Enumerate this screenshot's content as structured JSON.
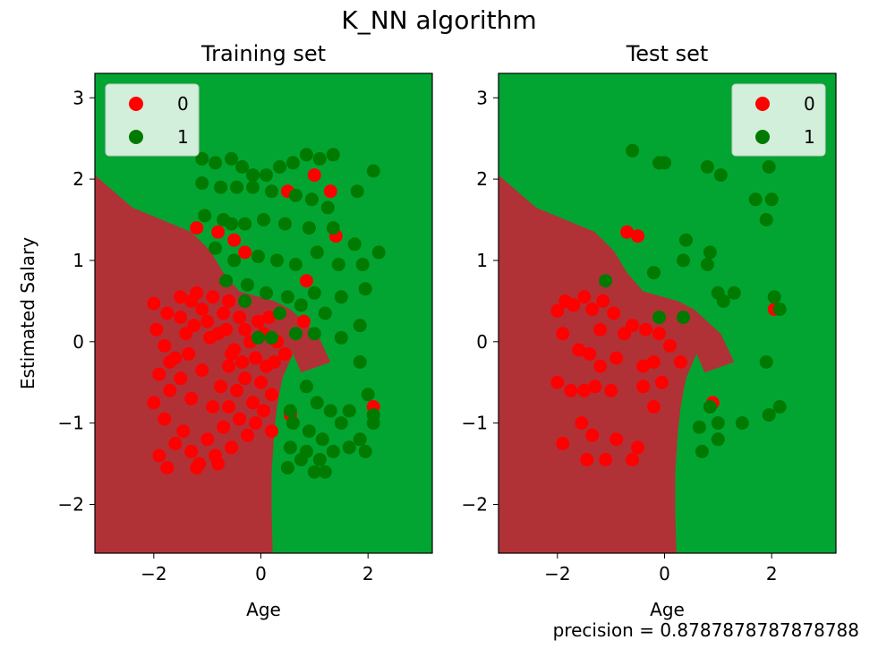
{
  "figure": {
    "title": "K_NN algorithm",
    "footnote": "precision = 0.8787878787878788"
  },
  "colors": {
    "region_0": "#b03237",
    "region_1": "#02a532",
    "point_0": "#ff0000",
    "point_1": "#007a00"
  },
  "chart_data": [
    {
      "type": "scatter",
      "title": "Training set",
      "xlabel": "Age",
      "ylabel": "Estimated Salary",
      "xlim": [
        -3.1,
        3.2
      ],
      "ylim": [
        -2.6,
        3.3
      ],
      "xticks": [
        -2,
        0,
        2
      ],
      "yticks": [
        -2,
        -1,
        0,
        1,
        2,
        3
      ],
      "xtick_labels": [
        "−2",
        "0",
        "2"
      ],
      "ytick_labels": [
        "−2",
        "−1",
        "0",
        "1",
        "2",
        "3"
      ],
      "legend": {
        "placement": "top-left",
        "entries": [
          "0",
          "1"
        ]
      },
      "decision_boundary_class0": [
        [
          -3.1,
          -2.6
        ],
        [
          -3.1,
          2.05
        ],
        [
          -2.4,
          1.65
        ],
        [
          -1.85,
          1.5
        ],
        [
          -1.3,
          1.35
        ],
        [
          -0.95,
          1.12
        ],
        [
          -0.7,
          0.85
        ],
        [
          -0.4,
          0.62
        ],
        [
          0.25,
          0.5
        ],
        [
          0.55,
          0.4
        ],
        [
          1.05,
          0.1
        ],
        [
          1.3,
          -0.25
        ],
        [
          0.75,
          -0.38
        ],
        [
          0.6,
          -0.15
        ],
        [
          0.4,
          -0.45
        ],
        [
          0.3,
          -0.8
        ],
        [
          0.25,
          -1.1
        ],
        [
          0.2,
          -1.6
        ],
        [
          0.2,
          -2.1
        ],
        [
          0.22,
          -2.6
        ]
      ],
      "series": [
        {
          "name": "0",
          "points": [
            [
              -2,
              0.47
            ],
            [
              -1.75,
              0.35
            ],
            [
              -1.95,
              0.15
            ],
            [
              -1.8,
              -0.05
            ],
            [
              -1.7,
              -0.25
            ],
            [
              -1.5,
              0.3
            ],
            [
              -1.4,
              0.1
            ],
            [
              -1.35,
              -0.15
            ],
            [
              -1.3,
              0.5
            ],
            [
              -1.2,
              0.6
            ],
            [
              -1.1,
              0.4
            ],
            [
              -1,
              0.25
            ],
            [
              -0.9,
              0.55
            ],
            [
              -0.8,
              0.1
            ],
            [
              -0.7,
              0.35
            ],
            [
              -0.6,
              0.5
            ],
            [
              -0.5,
              -0.1
            ],
            [
              -0.4,
              0.3
            ],
            [
              -0.3,
              0.15
            ],
            [
              -0.2,
              0.0
            ],
            [
              -0.1,
              -0.2
            ],
            [
              0.05,
              0.1
            ],
            [
              0.15,
              0.3
            ],
            [
              0.3,
              0.0
            ],
            [
              0.45,
              -0.15
            ],
            [
              -1.9,
              -0.4
            ],
            [
              -1.7,
              -0.6
            ],
            [
              -1.5,
              -0.45
            ],
            [
              -1.3,
              -0.7
            ],
            [
              -1.1,
              -0.35
            ],
            [
              -0.9,
              -0.8
            ],
            [
              -0.75,
              -0.55
            ],
            [
              -0.6,
              -0.3
            ],
            [
              -0.45,
              -0.6
            ],
            [
              -0.3,
              -0.45
            ],
            [
              -0.15,
              -0.75
            ],
            [
              0.0,
              -0.5
            ],
            [
              0.1,
              -0.3
            ],
            [
              0.2,
              -0.65
            ],
            [
              -2,
              -0.75
            ],
            [
              -1.8,
              -0.95
            ],
            [
              -1.6,
              -1.25
            ],
            [
              -1.45,
              -1.1
            ],
            [
              -1.3,
              -1.35
            ],
            [
              -1.15,
              -1.5
            ],
            [
              -1,
              -1.2
            ],
            [
              -0.85,
              -1.4
            ],
            [
              -0.7,
              -1.05
            ],
            [
              -0.55,
              -1.3
            ],
            [
              -0.4,
              -0.95
            ],
            [
              -0.25,
              -1.15
            ],
            [
              -0.1,
              -1.0
            ],
            [
              0.05,
              -0.85
            ],
            [
              -1.9,
              -1.4
            ],
            [
              -1.75,
              -1.55
            ],
            [
              -1.2,
              -1.55
            ],
            [
              -0.8,
              -1.5
            ],
            [
              -0.6,
              -0.8
            ],
            [
              0.2,
              -1.1
            ],
            [
              0.55,
              -0.9
            ],
            [
              -1.2,
              1.4
            ],
            [
              -0.8,
              1.35
            ],
            [
              -0.5,
              1.25
            ],
            [
              -0.3,
              1.1
            ],
            [
              0.5,
              1.85
            ],
            [
              1.0,
              2.05
            ],
            [
              1.3,
              1.85
            ],
            [
              1.4,
              1.3
            ],
            [
              0.85,
              0.75
            ],
            [
              0.8,
              0.25
            ],
            [
              2.1,
              -0.8
            ],
            [
              -1.5,
              0.55
            ],
            [
              -1.25,
              0.2
            ],
            [
              -0.95,
              0.05
            ],
            [
              -0.65,
              0.15
            ],
            [
              -0.35,
              -0.25
            ],
            [
              -0.05,
              0.25
            ],
            [
              0.25,
              -0.25
            ],
            [
              -0.55,
              -0.15
            ],
            [
              -1.6,
              -0.2
            ]
          ]
        },
        {
          "name": "1",
          "points": [
            [
              -1.1,
              2.25
            ],
            [
              -0.85,
              2.2
            ],
            [
              -0.55,
              2.25
            ],
            [
              -0.35,
              2.15
            ],
            [
              -0.15,
              2.05
            ],
            [
              0.1,
              2.05
            ],
            [
              0.35,
              2.15
            ],
            [
              0.6,
              2.2
            ],
            [
              0.85,
              2.3
            ],
            [
              1.1,
              2.25
            ],
            [
              1.35,
              2.3
            ],
            [
              -1.1,
              1.95
            ],
            [
              -0.75,
              1.9
            ],
            [
              -0.45,
              1.9
            ],
            [
              -0.15,
              1.9
            ],
            [
              0.2,
              1.85
            ],
            [
              0.65,
              1.8
            ],
            [
              0.95,
              1.75
            ],
            [
              1.25,
              1.65
            ],
            [
              1.8,
              1.85
            ],
            [
              2.1,
              2.1
            ],
            [
              -1.05,
              1.55
            ],
            [
              -0.7,
              1.5
            ],
            [
              -0.3,
              1.45
            ],
            [
              0.05,
              1.5
            ],
            [
              0.45,
              1.45
            ],
            [
              0.9,
              1.4
            ],
            [
              1.35,
              1.4
            ],
            [
              1.75,
              1.2
            ],
            [
              -0.85,
              1.15
            ],
            [
              -0.5,
              1.0
            ],
            [
              -0.05,
              1.05
            ],
            [
              0.3,
              1.0
            ],
            [
              0.65,
              0.95
            ],
            [
              1.05,
              1.1
            ],
            [
              1.45,
              0.95
            ],
            [
              1.9,
              0.95
            ],
            [
              2.2,
              1.1
            ],
            [
              -0.65,
              0.75
            ],
            [
              -0.25,
              0.7
            ],
            [
              0.1,
              0.6
            ],
            [
              0.5,
              0.55
            ],
            [
              1.0,
              0.6
            ],
            [
              1.5,
              0.55
            ],
            [
              1.95,
              0.65
            ],
            [
              -0.3,
              0.5
            ],
            [
              0.35,
              0.35
            ],
            [
              0.75,
              0.45
            ],
            [
              1.2,
              0.35
            ],
            [
              1.85,
              0.2
            ],
            [
              0.65,
              0.1
            ],
            [
              1.0,
              0.1
            ],
            [
              1.5,
              0.05
            ],
            [
              -0.05,
              0.05
            ],
            [
              0.2,
              0.05
            ],
            [
              1.85,
              -0.25
            ],
            [
              0.85,
              -0.55
            ],
            [
              1.05,
              -0.75
            ],
            [
              1.3,
              -0.85
            ],
            [
              1.65,
              -0.85
            ],
            [
              2.0,
              -0.65
            ],
            [
              2.1,
              -0.9
            ],
            [
              0.6,
              -1.0
            ],
            [
              0.9,
              -1.1
            ],
            [
              1.15,
              -1.2
            ],
            [
              1.5,
              -1.0
            ],
            [
              1.85,
              -1.2
            ],
            [
              2.1,
              -1.0
            ],
            [
              0.55,
              -1.3
            ],
            [
              0.85,
              -1.35
            ],
            [
              1.1,
              -1.45
            ],
            [
              1.35,
              -1.35
            ],
            [
              1.65,
              -1.3
            ],
            [
              1.95,
              -1.35
            ],
            [
              1.0,
              -1.6
            ],
            [
              0.5,
              -1.55
            ],
            [
              1.2,
              -1.6
            ],
            [
              0.75,
              -1.45
            ],
            [
              -0.55,
              1.45
            ],
            [
              0.55,
              -0.85
            ]
          ]
        }
      ]
    },
    {
      "type": "scatter",
      "title": "Test set",
      "xlabel": "Age",
      "ylabel": "",
      "xlim": [
        -3.1,
        3.2
      ],
      "ylim": [
        -2.6,
        3.3
      ],
      "xticks": [
        -2,
        0,
        2
      ],
      "yticks": [
        -2,
        -1,
        0,
        1,
        2,
        3
      ],
      "xtick_labels": [
        "−2",
        "0",
        "2"
      ],
      "ytick_labels": [
        "−2",
        "−1",
        "0",
        "1",
        "2",
        "3"
      ],
      "legend": {
        "placement": "top-right",
        "entries": [
          "0",
          "1"
        ]
      },
      "decision_boundary_class0": [
        [
          -3.1,
          -2.6
        ],
        [
          -3.1,
          2.05
        ],
        [
          -2.4,
          1.65
        ],
        [
          -1.85,
          1.5
        ],
        [
          -1.3,
          1.35
        ],
        [
          -0.95,
          1.12
        ],
        [
          -0.7,
          0.85
        ],
        [
          -0.4,
          0.62
        ],
        [
          0.25,
          0.5
        ],
        [
          0.55,
          0.4
        ],
        [
          1.05,
          0.1
        ],
        [
          1.3,
          -0.25
        ],
        [
          0.75,
          -0.38
        ],
        [
          0.6,
          -0.15
        ],
        [
          0.4,
          -0.45
        ],
        [
          0.3,
          -0.8
        ],
        [
          0.25,
          -1.1
        ],
        [
          0.2,
          -1.6
        ],
        [
          0.2,
          -2.1
        ],
        [
          0.22,
          -2.6
        ]
      ],
      "series": [
        {
          "name": "0",
          "points": [
            [
              -2,
              0.38
            ],
            [
              -1.85,
              0.5
            ],
            [
              -1.7,
              0.45
            ],
            [
              -1.5,
              0.55
            ],
            [
              -1.35,
              0.4
            ],
            [
              -1.15,
              0.5
            ],
            [
              -0.95,
              0.35
            ],
            [
              -0.75,
              0.1
            ],
            [
              -0.6,
              0.2
            ],
            [
              -0.35,
              0.15
            ],
            [
              -0.1,
              0.1
            ],
            [
              -1.9,
              0.1
            ],
            [
              -1.6,
              -0.1
            ],
            [
              -1.4,
              -0.15
            ],
            [
              -1.2,
              -0.3
            ],
            [
              -0.9,
              -0.2
            ],
            [
              -0.4,
              -0.3
            ],
            [
              -0.2,
              -0.25
            ],
            [
              0.1,
              -0.05
            ],
            [
              0.3,
              -0.25
            ],
            [
              -2,
              -0.5
            ],
            [
              -1.75,
              -0.6
            ],
            [
              -1.5,
              -0.6
            ],
            [
              -1.3,
              -0.55
            ],
            [
              -1.0,
              -0.6
            ],
            [
              -0.4,
              -0.55
            ],
            [
              -0.05,
              -0.5
            ],
            [
              -1.55,
              -1.0
            ],
            [
              -1.35,
              -1.15
            ],
            [
              -0.9,
              -1.2
            ],
            [
              -0.5,
              -1.3
            ],
            [
              -1.9,
              -1.25
            ],
            [
              -1.45,
              -1.45
            ],
            [
              -1.1,
              -1.45
            ],
            [
              -0.6,
              -1.45
            ],
            [
              -0.7,
              1.35
            ],
            [
              -0.5,
              1.3
            ],
            [
              2.05,
              0.4
            ],
            [
              0.9,
              -0.75
            ],
            [
              -0.2,
              -0.8
            ],
            [
              -1.2,
              0.15
            ]
          ]
        },
        {
          "name": "1",
          "points": [
            [
              -0.6,
              2.35
            ],
            [
              -0.1,
              2.2
            ],
            [
              0.0,
              2.2
            ],
            [
              0.8,
              2.15
            ],
            [
              1.05,
              2.05
            ],
            [
              1.95,
              2.15
            ],
            [
              1.7,
              1.75
            ],
            [
              2.0,
              1.75
            ],
            [
              1.9,
              1.5
            ],
            [
              0.4,
              1.25
            ],
            [
              0.85,
              1.1
            ],
            [
              0.8,
              0.95
            ],
            [
              -0.2,
              0.85
            ],
            [
              0.35,
              1.0
            ],
            [
              -1.1,
              0.75
            ],
            [
              1.3,
              0.6
            ],
            [
              1.0,
              0.6
            ],
            [
              1.1,
              0.5
            ],
            [
              2.05,
              0.55
            ],
            [
              2.15,
              0.4
            ],
            [
              0.35,
              0.3
            ],
            [
              -0.1,
              0.3
            ],
            [
              1.9,
              -0.25
            ],
            [
              0.85,
              -0.8
            ],
            [
              2.15,
              -0.8
            ],
            [
              1.95,
              -0.9
            ],
            [
              1.0,
              -1.0
            ],
            [
              1.45,
              -1.0
            ],
            [
              0.65,
              -1.05
            ],
            [
              1.0,
              -1.2
            ],
            [
              0.7,
              -1.35
            ]
          ]
        }
      ]
    }
  ]
}
